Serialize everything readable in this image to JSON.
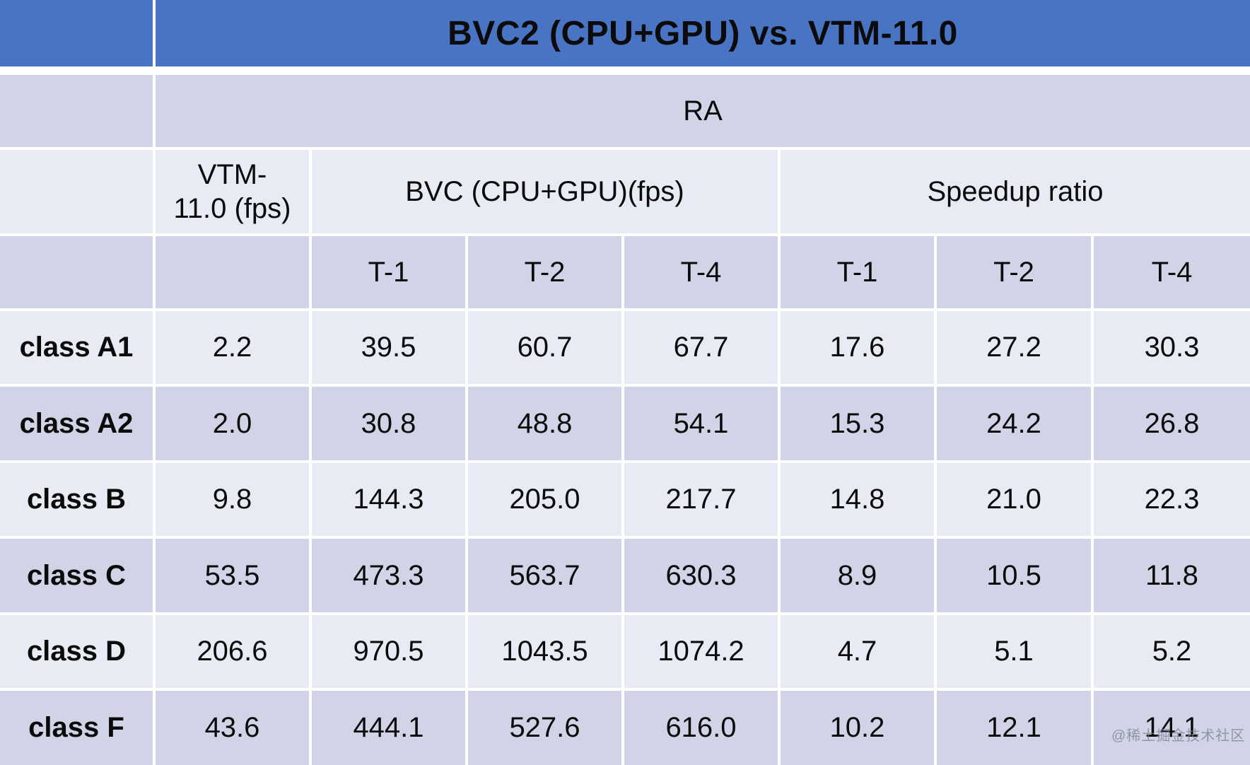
{
  "table": {
    "title": "BVC2 (CPU+GPU) vs. VTM-11.0",
    "ra_label": "RA",
    "col_vtm": "VTM-\n11.0 (fps)",
    "col_bvc": "BVC (CPU+GPU)(fps)",
    "col_speedup": "Speedup ratio",
    "thread_cols": [
      "T-1",
      "T-2",
      "T-4",
      "T-1",
      "T-2",
      "T-4"
    ],
    "rows": [
      {
        "label": "class A1",
        "values": [
          "2.2",
          "39.5",
          "60.7",
          "67.7",
          "17.6",
          "27.2",
          "30.3"
        ]
      },
      {
        "label": "class A2",
        "values": [
          "2.0",
          "30.8",
          "48.8",
          "54.1",
          "15.3",
          "24.2",
          "26.8"
        ]
      },
      {
        "label": "class B",
        "values": [
          "9.8",
          "144.3",
          "205.0",
          "217.7",
          "14.8",
          "21.0",
          "22.3"
        ]
      },
      {
        "label": "class C",
        "values": [
          "53.5",
          "473.3",
          "563.7",
          "630.3",
          "8.9",
          "10.5",
          "11.8"
        ]
      },
      {
        "label": "class D",
        "values": [
          "206.6",
          "970.5",
          "1043.5",
          "1074.2",
          "4.7",
          "5.1",
          "5.2"
        ]
      },
      {
        "label": "class F",
        "values": [
          "43.6",
          "444.1",
          "527.6",
          "616.0",
          "10.2",
          "12.1",
          "14.1"
        ]
      }
    ]
  },
  "watermark": {
    "text": "@稀土掘金技术社区"
  },
  "colors": {
    "header_blue": "#4973C3",
    "band_dark": "#D0D4E6",
    "band_light": "#E9EBF4",
    "border_white": "#FFFFFF",
    "text_black": "#0B0B0B",
    "watermark_gray": "#7D8391"
  },
  "chart_data": {
    "type": "table",
    "title": "BVC2 (CPU+GPU) vs. VTM-11.0",
    "configuration": "RA",
    "column_groups": [
      {
        "name": "VTM-11.0 (fps)",
        "columns": [
          "VTM-11.0 (fps)"
        ]
      },
      {
        "name": "BVC (CPU+GPU)(fps)",
        "columns": [
          "T-1",
          "T-2",
          "T-4"
        ]
      },
      {
        "name": "Speedup ratio",
        "columns": [
          "T-1",
          "T-2",
          "T-4"
        ]
      }
    ],
    "rows": [
      {
        "class": "class A1",
        "vtm_fps": 2.2,
        "bvc_fps": {
          "T-1": 39.5,
          "T-2": 60.7,
          "T-4": 67.7
        },
        "speedup": {
          "T-1": 17.6,
          "T-2": 27.2,
          "T-4": 30.3
        }
      },
      {
        "class": "class A2",
        "vtm_fps": 2.0,
        "bvc_fps": {
          "T-1": 30.8,
          "T-2": 48.8,
          "T-4": 54.1
        },
        "speedup": {
          "T-1": 15.3,
          "T-2": 24.2,
          "T-4": 26.8
        }
      },
      {
        "class": "class B",
        "vtm_fps": 9.8,
        "bvc_fps": {
          "T-1": 144.3,
          "T-2": 205.0,
          "T-4": 217.7
        },
        "speedup": {
          "T-1": 14.8,
          "T-2": 21.0,
          "T-4": 22.3
        }
      },
      {
        "class": "class C",
        "vtm_fps": 53.5,
        "bvc_fps": {
          "T-1": 473.3,
          "T-2": 563.7,
          "T-4": 630.3
        },
        "speedup": {
          "T-1": 8.9,
          "T-2": 10.5,
          "T-4": 11.8
        }
      },
      {
        "class": "class D",
        "vtm_fps": 206.6,
        "bvc_fps": {
          "T-1": 970.5,
          "T-2": 1043.5,
          "T-4": 1074.2
        },
        "speedup": {
          "T-1": 4.7,
          "T-2": 5.1,
          "T-4": 5.2
        }
      },
      {
        "class": "class F",
        "vtm_fps": 43.6,
        "bvc_fps": {
          "T-1": 444.1,
          "T-2": 527.6,
          "T-4": 616.0
        },
        "speedup": {
          "T-1": 10.2,
          "T-2": 12.1,
          "T-4": 14.1
        }
      }
    ]
  }
}
